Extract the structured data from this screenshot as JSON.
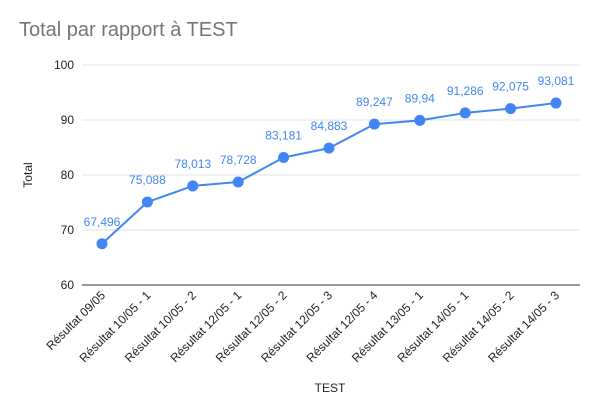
{
  "chart_data": {
    "type": "line",
    "title": "Total par rapport à TEST",
    "xlabel": "TEST",
    "ylabel": "Total",
    "ylim": [
      60,
      100
    ],
    "yticks": [
      60,
      70,
      80,
      90,
      100
    ],
    "grid": true,
    "legend": "none",
    "categories": [
      "Résultat 09/05",
      "Résultat 10/05 - 1",
      "Résultat 10/05 - 2",
      "Résultat 12/05 - 1",
      "Résultat 12/05 - 2",
      "Résultat 12/05 - 3",
      "Résultat 12/05 - 4",
      "Résultat 13/05 - 1",
      "Résultat 14/05 - 1",
      "Résultat 14/05 - 2",
      "Résultat 14/05 - 3"
    ],
    "series": [
      {
        "values": [
          67.496,
          75.088,
          78.013,
          78.728,
          83.181,
          84.883,
          89.247,
          89.94,
          91.286,
          92.075,
          93.081
        ],
        "labels": [
          "67,496",
          "75,088",
          "78,013",
          "78,728",
          "83,181",
          "84,883",
          "89,247",
          "89,94",
          "91,286",
          "92,075",
          "93,081"
        ],
        "color": "#4285f4"
      }
    ],
    "colors": {
      "series": "#4285f4",
      "grid": "#e0e0e0",
      "axis": "#333333",
      "title": "#757575"
    }
  }
}
